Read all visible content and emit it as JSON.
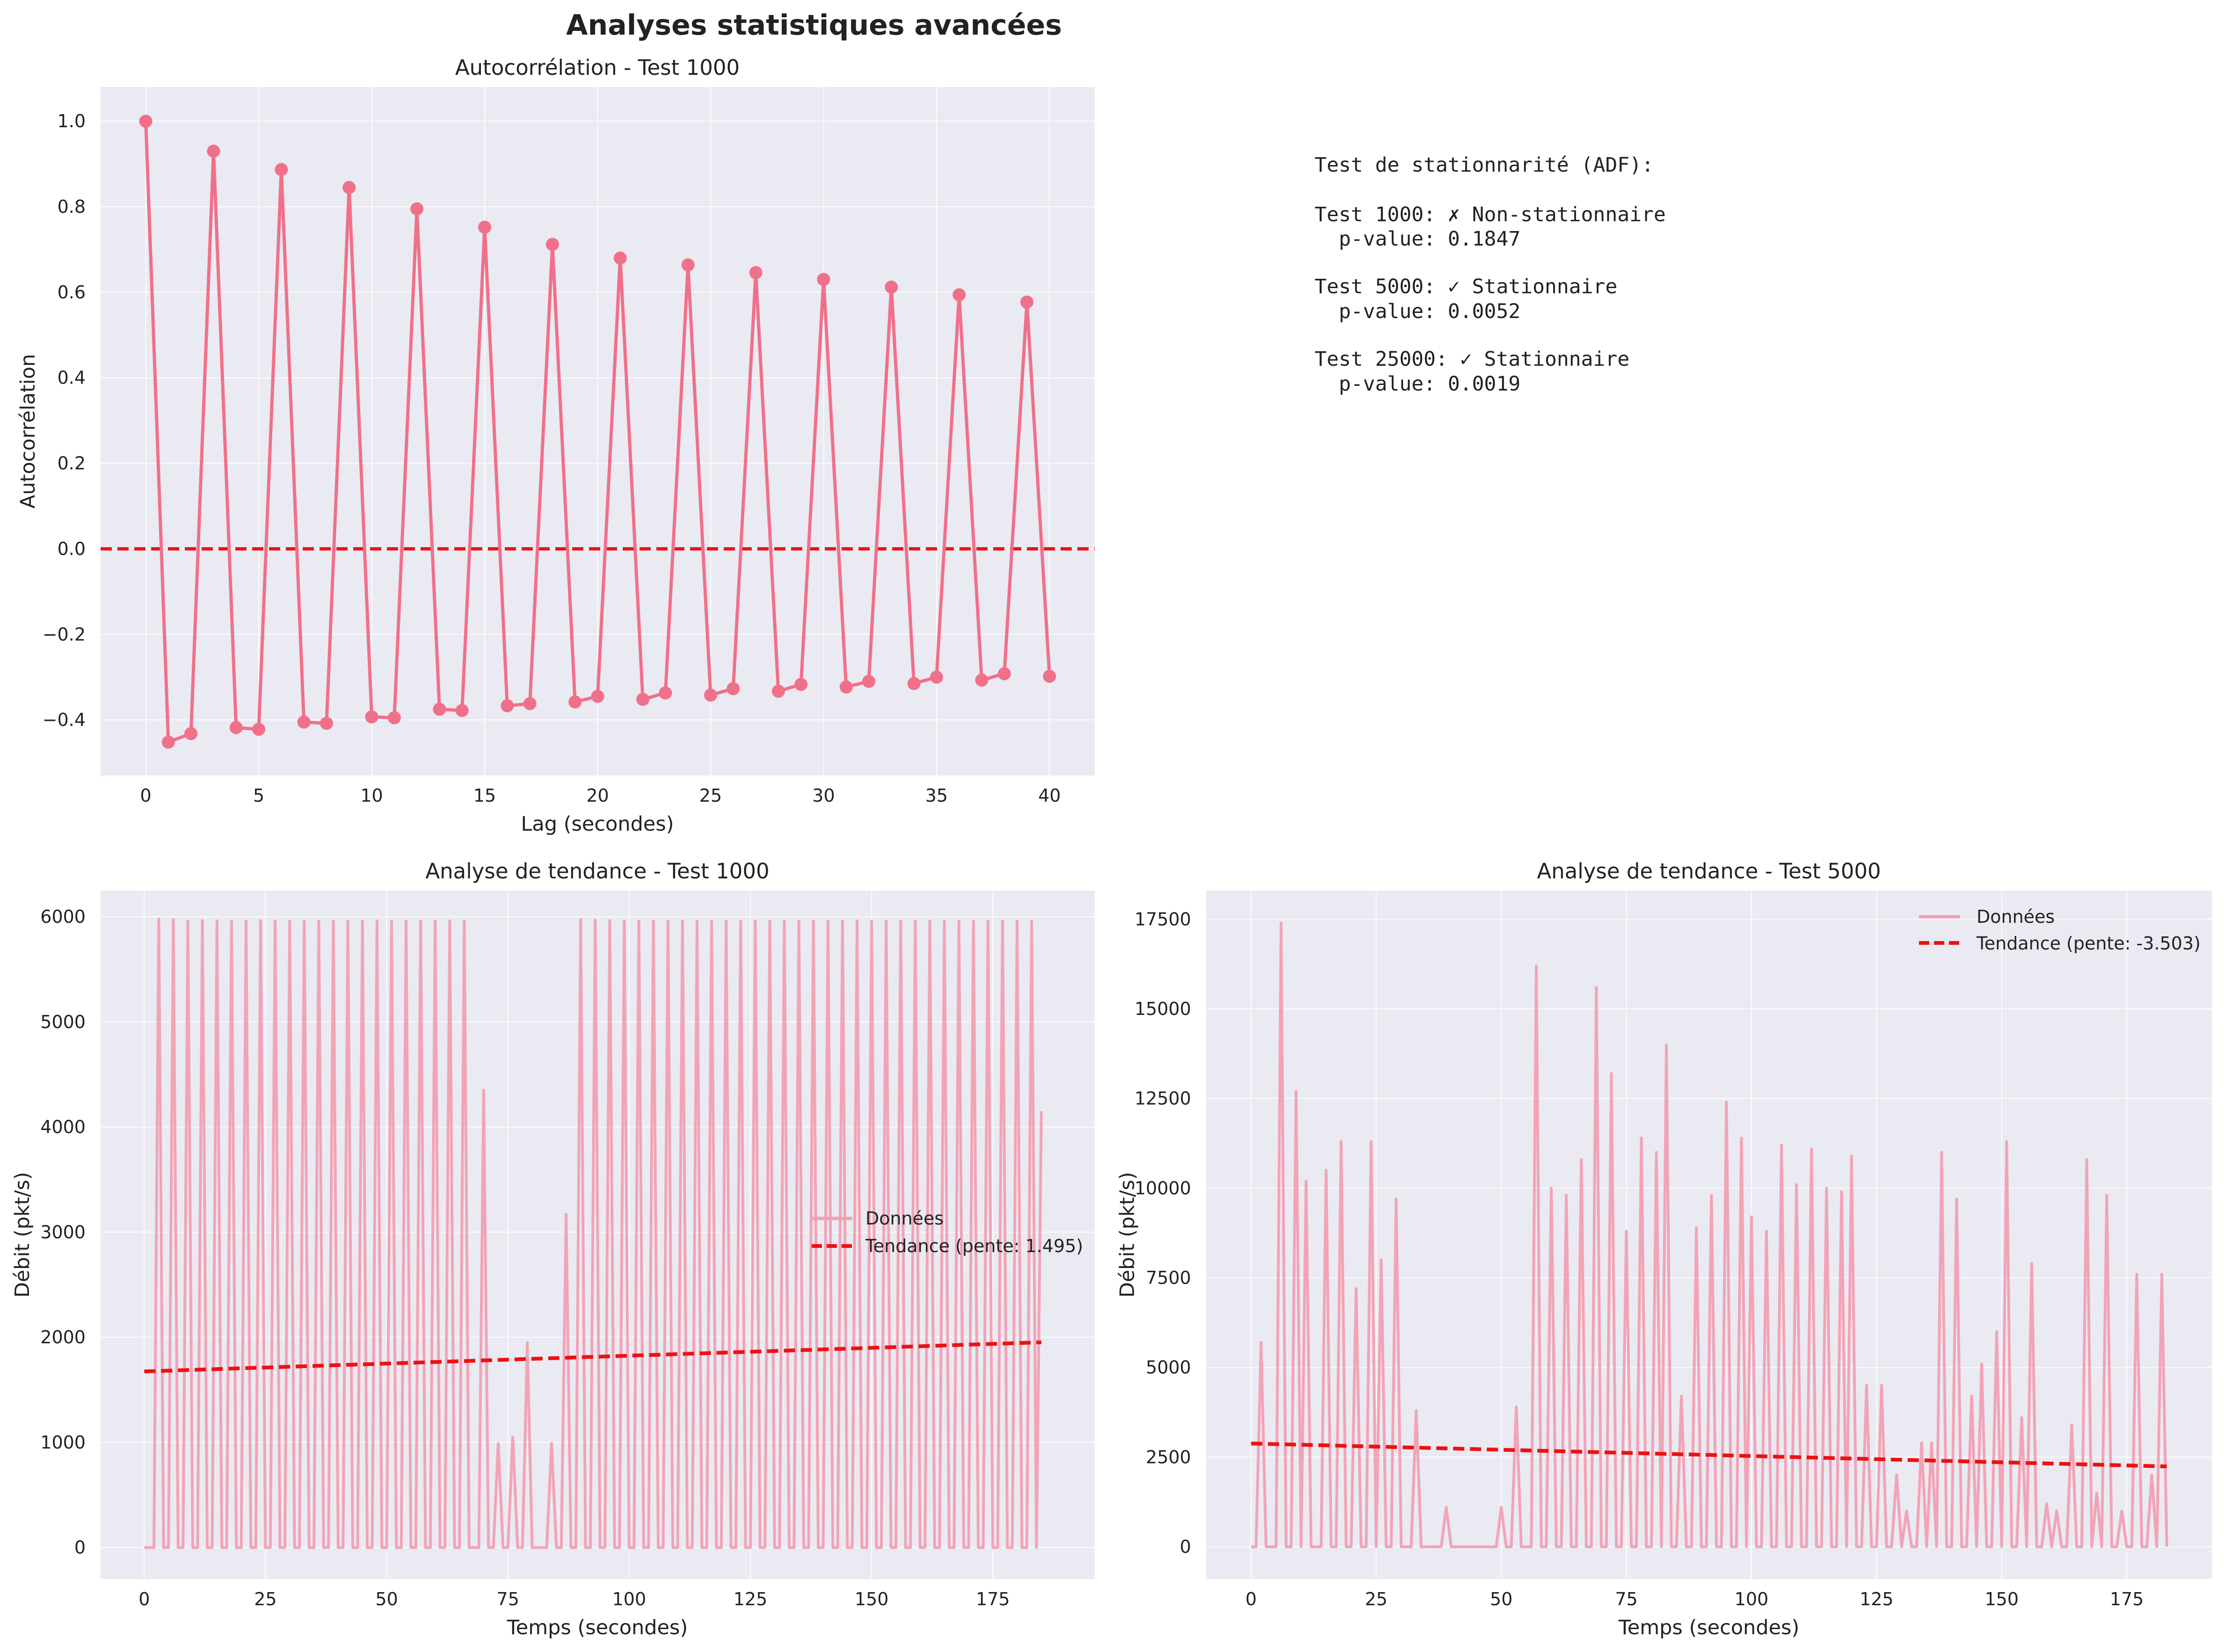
{
  "title": "Analyses statistiques avancées",
  "colors": {
    "acf": "#f0708a",
    "data_line": "#f2a0b3",
    "trend": "#ee1111",
    "zero_line": "#ee1111",
    "panel_bg": "#eaeaf2",
    "grid": "#ffffff"
  },
  "adf_text": {
    "heading": "Test de stationnarité (ADF):",
    "lines": [
      "Test 1000: ✗ Non-stationnaire",
      "  p-value: 0.1847",
      "Test 5000: ✓ Stationnaire",
      "  p-value: 0.0052",
      "Test 25000: ✓ Stationnaire",
      "  p-value: 0.0019"
    ]
  },
  "chart_data": [
    {
      "type": "line",
      "title": "Autocorrélation - Test 1000",
      "xlabel": "Lag (secondes)",
      "ylabel": "Autocorrélation",
      "xlim": [
        -2,
        42
      ],
      "ylim": [
        -0.53,
        1.08
      ],
      "grid": true,
      "xticks": [
        0,
        5,
        10,
        15,
        20,
        25,
        30,
        35,
        40
      ],
      "xtick_labels": [
        "0",
        "5",
        "10",
        "15",
        "20",
        "25",
        "30",
        "35",
        "40"
      ],
      "yticks": [
        -0.4,
        -0.2,
        0.0,
        0.2,
        0.4,
        0.6,
        0.8,
        1.0
      ],
      "ytick_labels": [
        "−0.4",
        "−0.2",
        "0.0",
        "0.2",
        "0.4",
        "0.6",
        "0.8",
        "1.0"
      ],
      "reference_line": {
        "y": 0.0,
        "style": "dashed"
      },
      "series": [
        {
          "x": [
            0,
            1,
            2,
            3,
            4,
            5,
            6,
            7,
            8,
            9,
            10,
            11,
            12,
            13,
            14,
            15,
            16,
            17,
            18,
            19,
            20,
            21,
            22,
            23,
            24,
            25,
            26,
            27,
            28,
            29,
            30,
            31,
            32,
            33,
            34,
            35,
            36,
            37,
            38,
            39,
            40
          ],
          "values": [
            1.0,
            -0.452,
            -0.432,
            0.93,
            -0.418,
            -0.422,
            0.887,
            -0.405,
            -0.408,
            0.845,
            -0.393,
            -0.395,
            0.795,
            -0.375,
            -0.378,
            0.752,
            -0.367,
            -0.362,
            0.712,
            -0.358,
            -0.345,
            0.68,
            -0.352,
            -0.337,
            0.664,
            -0.342,
            -0.327,
            0.646,
            -0.333,
            -0.317,
            0.63,
            -0.323,
            -0.31,
            0.612,
            -0.315,
            -0.3,
            0.594,
            -0.307,
            -0.292,
            0.577,
            -0.298
          ],
          "markers": true
        }
      ]
    },
    {
      "type": "line",
      "title": "Analyse de tendance - Test 1000",
      "xlabel": "Temps (secondes)",
      "ylabel": "Débit (pkt/s)",
      "xlim": [
        -9,
        196
      ],
      "ylim": [
        -300,
        6250
      ],
      "grid": true,
      "legend_position": "center-right",
      "xticks": [
        0,
        25,
        50,
        75,
        100,
        125,
        150,
        175
      ],
      "xtick_labels": [
        "0",
        "25",
        "50",
        "75",
        "100",
        "125",
        "150",
        "175"
      ],
      "yticks": [
        0,
        1000,
        2000,
        3000,
        4000,
        5000,
        6000
      ],
      "ytick_labels": [
        "0",
        "1000",
        "2000",
        "3000",
        "4000",
        "5000",
        "6000"
      ],
      "peak_period": 3,
      "series": [
        {
          "name": "Données",
          "x": [
            0,
            3,
            6,
            9,
            12,
            15,
            18,
            21,
            24,
            27,
            30,
            33,
            36,
            39,
            42,
            45,
            48,
            51,
            54,
            57,
            60,
            63,
            66,
            70,
            73,
            76,
            79,
            84,
            87,
            90,
            93,
            96,
            99,
            102,
            105,
            108,
            111,
            114,
            117,
            120,
            123,
            126,
            129,
            132,
            135,
            138,
            141,
            144,
            147,
            150,
            153,
            156,
            159,
            162,
            165,
            168,
            171,
            174,
            177,
            180,
            183,
            185
          ],
          "values": [
            0,
            5980,
            5975,
            5960,
            5965,
            5962,
            5958,
            5960,
            5965,
            5962,
            5961,
            5960,
            5959,
            5960,
            5961,
            5960,
            5962,
            5958,
            5960,
            5961,
            5960,
            5962,
            5961,
            4350,
            990,
            1050,
            1950,
            990,
            3170,
            5975,
            5970,
            5965,
            5962,
            5960,
            5961,
            5960,
            5962,
            5958,
            5960,
            5961,
            5960,
            5962,
            5961,
            5960,
            5959,
            5960,
            5961,
            5960,
            5962,
            5958,
            5960,
            5961,
            5960,
            5962,
            5961,
            5960,
            5959,
            5960,
            5961,
            5960,
            5962,
            4150
          ]
        },
        {
          "name": "Tendance (pente: 1.495)",
          "x": [
            0,
            185
          ],
          "values": [
            1675,
            1952
          ],
          "style": "dashed"
        }
      ]
    },
    {
      "type": "line",
      "title": "Analyse de tendance - Test 5000",
      "xlabel": "Temps (secondes)",
      "ylabel": "Débit (pkt/s)",
      "xlim": [
        -9,
        192
      ],
      "ylim": [
        -900,
        18300
      ],
      "grid": true,
      "legend_position": "top-right",
      "xticks": [
        0,
        25,
        50,
        75,
        100,
        125,
        150,
        175
      ],
      "xtick_labels": [
        "0",
        "25",
        "50",
        "75",
        "100",
        "125",
        "150",
        "175"
      ],
      "yticks": [
        0,
        2500,
        5000,
        7500,
        10000,
        12500,
        15000,
        17500
      ],
      "ytick_labels": [
        "0",
        "2500",
        "5000",
        "7500",
        "10000",
        "12500",
        "15000",
        "17500"
      ],
      "series": [
        {
          "name": "Données",
          "x": [
            2,
            6,
            9,
            11,
            15,
            18,
            21,
            24,
            26,
            29,
            33,
            39,
            50,
            53,
            57,
            60,
            63,
            66,
            69,
            72,
            75,
            78,
            81,
            83,
            86,
            89,
            92,
            95,
            98,
            100,
            103,
            106,
            109,
            112,
            115,
            118,
            120,
            123,
            126,
            129,
            131,
            134,
            136,
            138,
            141,
            144,
            146,
            149,
            151,
            154,
            156,
            159,
            161,
            164,
            167,
            169,
            171,
            174,
            177,
            180,
            182
          ],
          "values": [
            5700,
            17400,
            12700,
            10200,
            10500,
            11300,
            7200,
            11300,
            8000,
            9700,
            3800,
            1100,
            1100,
            3900,
            16200,
            10000,
            9800,
            10800,
            15600,
            13200,
            8800,
            11400,
            11000,
            14000,
            4200,
            8900,
            9800,
            12400,
            11400,
            9200,
            8800,
            11200,
            10100,
            11100,
            10000,
            9900,
            10900,
            4500,
            4500,
            2000,
            1000,
            2900,
            2900,
            11000,
            9700,
            4200,
            5100,
            6000,
            11300,
            3600,
            7900,
            1200,
            1000,
            3400,
            10800,
            1500,
            9800,
            1000,
            7600,
            2000,
            7600
          ]
        },
        {
          "name": "Tendance (pente: -3.503)",
          "x": [
            0,
            183
          ],
          "values": [
            2880,
            2240
          ],
          "style": "dashed"
        }
      ]
    }
  ]
}
